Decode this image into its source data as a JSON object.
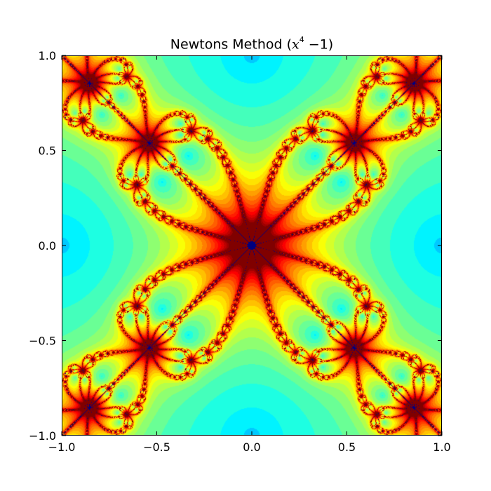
{
  "chart_data": {
    "type": "heatmap",
    "title": "Newtons Method (x⁴ −1)",
    "title_parts": {
      "prefix": "Newtons Method (",
      "var": "x",
      "exponent": "4",
      "rest": " −1)"
    },
    "function": "x^4 - 1",
    "xlabel": "",
    "ylabel": "",
    "xlim": [
      -1.0,
      1.0
    ],
    "ylim": [
      -1.0,
      1.0
    ],
    "xticks": [
      -1.0,
      -0.5,
      0.0,
      0.5,
      1.0
    ],
    "yticks": [
      -1.0,
      -0.5,
      0.0,
      0.5,
      1.0
    ],
    "xtick_labels": [
      "−1.0",
      "−0.5",
      "0.0",
      "0.5",
      "1.0"
    ],
    "ytick_labels": [
      "−1.0",
      "−0.5",
      "0.0",
      "0.5",
      "1.0"
    ],
    "colormap": "jet",
    "grid": false,
    "legend": "none",
    "colors": {
      "low": "#00007f",
      "mid_low": "#0000ff",
      "mid": "#00ffff",
      "mid_high": "#ffff00",
      "high": "#ff0000",
      "max": "#7f0000"
    }
  }
}
